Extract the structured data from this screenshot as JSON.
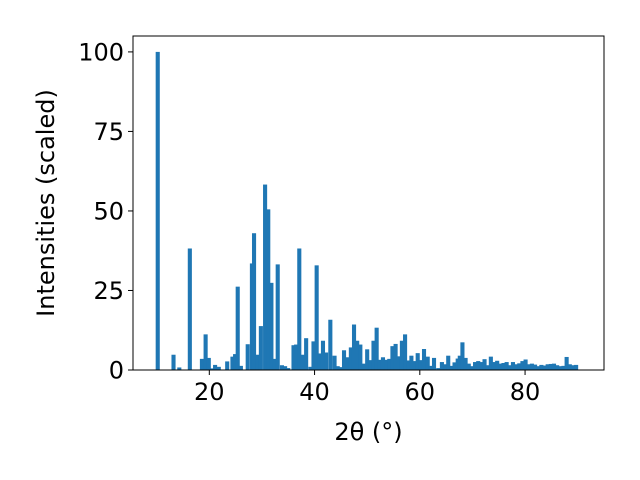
{
  "chart_data": {
    "type": "bar",
    "title": "",
    "xlabel": "2θ (°)",
    "ylabel": "Intensities (scaled)",
    "xlim": [
      5.5,
      95
    ],
    "ylim": [
      0,
      105
    ],
    "x_ticks": [
      20,
      40,
      60,
      80
    ],
    "y_ticks": [
      0,
      25,
      50,
      75,
      100
    ],
    "grid": false,
    "bar_color": "#1f77b4",
    "bar_width": 0.78,
    "bars": [
      {
        "x": 10.2,
        "y": 100
      },
      {
        "x": 13.2,
        "y": 4.8
      },
      {
        "x": 14.3,
        "y": 0.8
      },
      {
        "x": 16.3,
        "y": 38.2
      },
      {
        "x": 18.6,
        "y": 3.5
      },
      {
        "x": 19.3,
        "y": 11.2
      },
      {
        "x": 19.9,
        "y": 3.8
      },
      {
        "x": 20.5,
        "y": 0.5
      },
      {
        "x": 21.1,
        "y": 1.6
      },
      {
        "x": 21.8,
        "y": 1.0
      },
      {
        "x": 23.4,
        "y": 2.7
      },
      {
        "x": 24.4,
        "y": 4.2
      },
      {
        "x": 24.9,
        "y": 5.0
      },
      {
        "x": 25.4,
        "y": 26.2
      },
      {
        "x": 26.0,
        "y": 1.3
      },
      {
        "x": 27.3,
        "y": 8.1
      },
      {
        "x": 28.1,
        "y": 33.5
      },
      {
        "x": 28.5,
        "y": 43.0
      },
      {
        "x": 29.1,
        "y": 4.8
      },
      {
        "x": 29.8,
        "y": 13.8
      },
      {
        "x": 30.6,
        "y": 58.3
      },
      {
        "x": 31.2,
        "y": 50.5
      },
      {
        "x": 31.8,
        "y": 27.4
      },
      {
        "x": 32.4,
        "y": 3.5
      },
      {
        "x": 33.0,
        "y": 33.2
      },
      {
        "x": 33.8,
        "y": 1.5
      },
      {
        "x": 34.4,
        "y": 1.2
      },
      {
        "x": 35.0,
        "y": 0.6
      },
      {
        "x": 36.0,
        "y": 7.8
      },
      {
        "x": 36.5,
        "y": 8.0
      },
      {
        "x": 37.1,
        "y": 38.2
      },
      {
        "x": 37.7,
        "y": 4.8
      },
      {
        "x": 38.4,
        "y": 10.0
      },
      {
        "x": 39.2,
        "y": 1.0
      },
      {
        "x": 39.8,
        "y": 9.0
      },
      {
        "x": 40.4,
        "y": 32.9
      },
      {
        "x": 41.0,
        "y": 5.2
      },
      {
        "x": 41.6,
        "y": 9.2
      },
      {
        "x": 42.2,
        "y": 5.5
      },
      {
        "x": 43.0,
        "y": 15.8
      },
      {
        "x": 43.8,
        "y": 4.5
      },
      {
        "x": 44.4,
        "y": 1.2
      },
      {
        "x": 45.0,
        "y": 0.9
      },
      {
        "x": 45.6,
        "y": 6.2
      },
      {
        "x": 46.2,
        "y": 4.0
      },
      {
        "x": 46.9,
        "y": 7.1
      },
      {
        "x": 47.5,
        "y": 14.3
      },
      {
        "x": 48.1,
        "y": 9.2
      },
      {
        "x": 48.7,
        "y": 8.0
      },
      {
        "x": 49.4,
        "y": 2.0
      },
      {
        "x": 50.0,
        "y": 6.5
      },
      {
        "x": 50.6,
        "y": 3.1
      },
      {
        "x": 51.2,
        "y": 9.2
      },
      {
        "x": 51.8,
        "y": 13.3
      },
      {
        "x": 52.4,
        "y": 3.2
      },
      {
        "x": 53.0,
        "y": 4.0
      },
      {
        "x": 53.6,
        "y": 3.2
      },
      {
        "x": 54.2,
        "y": 3.5
      },
      {
        "x": 54.8,
        "y": 7.5
      },
      {
        "x": 55.4,
        "y": 8.2
      },
      {
        "x": 56.0,
        "y": 4.3
      },
      {
        "x": 56.6,
        "y": 9.2
      },
      {
        "x": 57.2,
        "y": 11.2
      },
      {
        "x": 57.8,
        "y": 3.0
      },
      {
        "x": 58.4,
        "y": 4.5
      },
      {
        "x": 59.0,
        "y": 2.8
      },
      {
        "x": 59.6,
        "y": 5.3
      },
      {
        "x": 60.2,
        "y": 3.1
      },
      {
        "x": 60.8,
        "y": 6.6
      },
      {
        "x": 61.5,
        "y": 4.2
      },
      {
        "x": 62.1,
        "y": 1.3
      },
      {
        "x": 62.7,
        "y": 3.8
      },
      {
        "x": 63.5,
        "y": 0.6
      },
      {
        "x": 64.2,
        "y": 2.5
      },
      {
        "x": 64.8,
        "y": 1.8
      },
      {
        "x": 65.4,
        "y": 4.5
      },
      {
        "x": 66.0,
        "y": 1.3
      },
      {
        "x": 66.6,
        "y": 2.4
      },
      {
        "x": 67.2,
        "y": 3.6
      },
      {
        "x": 67.6,
        "y": 4.5
      },
      {
        "x": 68.1,
        "y": 8.7
      },
      {
        "x": 68.7,
        "y": 3.8
      },
      {
        "x": 69.3,
        "y": 2.0
      },
      {
        "x": 69.9,
        "y": 1.2
      },
      {
        "x": 70.5,
        "y": 2.5
      },
      {
        "x": 71.1,
        "y": 2.8
      },
      {
        "x": 71.7,
        "y": 2.5
      },
      {
        "x": 72.3,
        "y": 3.4
      },
      {
        "x": 72.9,
        "y": 1.5
      },
      {
        "x": 73.5,
        "y": 4.2
      },
      {
        "x": 74.1,
        "y": 2.5
      },
      {
        "x": 74.7,
        "y": 2.9
      },
      {
        "x": 75.3,
        "y": 2.0
      },
      {
        "x": 75.9,
        "y": 2.2
      },
      {
        "x": 76.5,
        "y": 2.5
      },
      {
        "x": 77.1,
        "y": 1.5
      },
      {
        "x": 77.7,
        "y": 2.5
      },
      {
        "x": 78.3,
        "y": 1.8
      },
      {
        "x": 78.9,
        "y": 2.1
      },
      {
        "x": 79.5,
        "y": 2.8
      },
      {
        "x": 80.1,
        "y": 3.3
      },
      {
        "x": 80.7,
        "y": 1.8
      },
      {
        "x": 81.3,
        "y": 2.0
      },
      {
        "x": 81.9,
        "y": 1.7
      },
      {
        "x": 82.5,
        "y": 1.2
      },
      {
        "x": 83.1,
        "y": 1.6
      },
      {
        "x": 83.7,
        "y": 1.4
      },
      {
        "x": 84.3,
        "y": 1.8
      },
      {
        "x": 84.9,
        "y": 1.9
      },
      {
        "x": 85.5,
        "y": 2.0
      },
      {
        "x": 86.1,
        "y": 1.5
      },
      {
        "x": 86.7,
        "y": 1.2
      },
      {
        "x": 87.3,
        "y": 1.3
      },
      {
        "x": 87.9,
        "y": 4.1
      },
      {
        "x": 88.5,
        "y": 1.8
      },
      {
        "x": 89.1,
        "y": 1.5
      },
      {
        "x": 89.7,
        "y": 1.6
      }
    ]
  }
}
